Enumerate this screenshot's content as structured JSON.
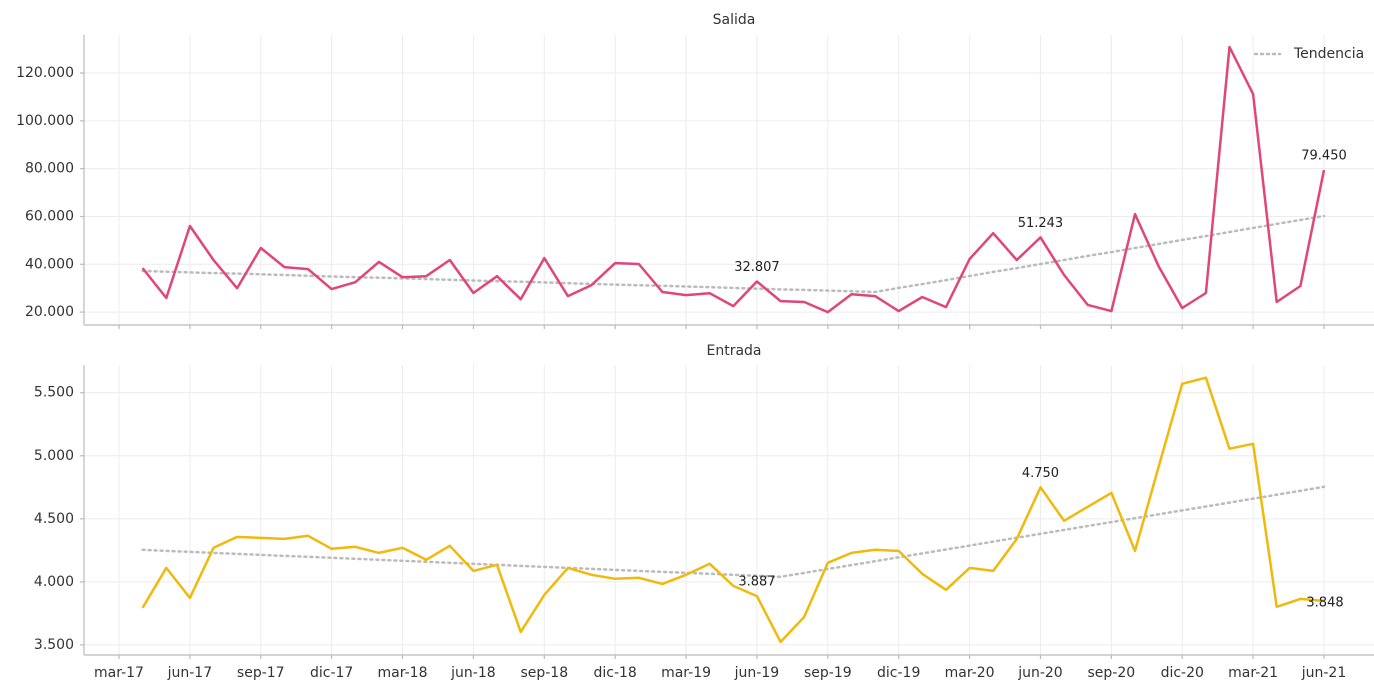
{
  "chart_data": [
    {
      "type": "line",
      "title": "Salida",
      "ylim": [
        14600,
        135900
      ],
      "yticks": [
        {
          "value": 20000,
          "label": "20.000"
        },
        {
          "value": 40000,
          "label": "40.000"
        },
        {
          "value": 60000,
          "label": "60.000"
        },
        {
          "value": 80000,
          "label": "80.000"
        },
        {
          "value": 100000,
          "label": "100.000"
        },
        {
          "value": 120000,
          "label": "120.000"
        }
      ],
      "grid": true,
      "legend": "upper right",
      "series": [
        {
          "color": "#e0457b",
          "values": [
            null,
            38400,
            25900,
            56000,
            41800,
            30000,
            46800,
            38800,
            38000,
            29600,
            32500,
            41000,
            34600,
            35000,
            41800,
            28000,
            35000,
            25400,
            42600,
            26700,
            31300,
            40500,
            40100,
            28400,
            27100,
            27900,
            22500,
            32807,
            24600,
            24200,
            20000,
            27500,
            26700,
            20400,
            26300,
            22100,
            42200,
            53000,
            41800,
            51243,
            35500,
            23000,
            20400,
            61000,
            39200,
            21700,
            28000,
            130900,
            111200,
            24200,
            30900,
            79450
          ],
          "value_labels": [
            null,
            null,
            null,
            null,
            null,
            null,
            null,
            null,
            null,
            null,
            null,
            null,
            null,
            null,
            null,
            null,
            null,
            null,
            null,
            null,
            null,
            null,
            null,
            null,
            null,
            null,
            null,
            "32.807",
            null,
            null,
            null,
            null,
            null,
            null,
            null,
            null,
            null,
            null,
            null,
            "51.243",
            null,
            null,
            null,
            null,
            null,
            null,
            null,
            null,
            null,
            null,
            null,
            "79.450"
          ]
        },
        {
          "name": "Tendencia",
          "color": "#bbbbbb",
          "dashed": true,
          "values": [
            null,
            37200,
            36900,
            36600,
            36300,
            36100,
            35800,
            35500,
            35200,
            34900,
            34600,
            34400,
            34100,
            33800,
            33500,
            33200,
            32900,
            32700,
            32400,
            32100,
            31800,
            31500,
            31200,
            31000,
            30700,
            30400,
            30100,
            29800,
            29500,
            29300,
            29000,
            28700,
            28400,
            30100,
            31700,
            33400,
            35100,
            36800,
            38400,
            40100,
            41800,
            43500,
            45100,
            46800,
            48500,
            50200,
            51800,
            53500,
            55200,
            56900,
            58500,
            60200
          ]
        }
      ]
    },
    {
      "type": "line",
      "title": "Entrada",
      "ylim": [
        3420,
        5720
      ],
      "yticks": [
        {
          "value": 3500,
          "label": "3.500"
        },
        {
          "value": 4000,
          "label": "4.000"
        },
        {
          "value": 4500,
          "label": "4.500"
        },
        {
          "value": 5000,
          "label": "5.000"
        },
        {
          "value": 5500,
          "label": "5.500"
        }
      ],
      "grid": true,
      "categories": [
        "mar-17",
        null,
        null,
        "jun-17",
        null,
        null,
        "sep-17",
        null,
        null,
        "dic-17",
        null,
        null,
        "mar-18",
        null,
        null,
        "jun-18",
        null,
        null,
        "sep-18",
        null,
        null,
        "dic-18",
        null,
        null,
        "mar-19",
        null,
        null,
        "jun-19",
        null,
        null,
        "sep-19",
        null,
        null,
        "dic-19",
        null,
        null,
        "mar-20",
        null,
        null,
        "jun-20",
        null,
        null,
        "sep-20",
        null,
        null,
        "dic-20",
        null,
        null,
        "mar-21",
        null,
        null,
        "jun-21"
      ],
      "series": [
        {
          "color": "#f0b90b",
          "values": [
            null,
            3794,
            4111,
            3873,
            4270,
            4357,
            4349,
            4341,
            4365,
            4262,
            4278,
            4230,
            4270,
            4175,
            4286,
            4087,
            4135,
            3603,
            3897,
            4111,
            4056,
            4024,
            4032,
            3984,
            4056,
            4143,
            3968,
            3887,
            3524,
            3722,
            4151,
            4230,
            4254,
            4246,
            4063,
            3937,
            4111,
            4087,
            4341,
            4750,
            4484,
            4595,
            4706,
            4246,
            4913,
            5571,
            5619,
            5056,
            5095,
            3802,
            3865,
            3848
          ],
          "value_labels": [
            null,
            null,
            null,
            null,
            null,
            null,
            null,
            null,
            null,
            null,
            null,
            null,
            null,
            null,
            null,
            null,
            null,
            null,
            null,
            null,
            null,
            null,
            null,
            null,
            null,
            null,
            null,
            "3.887",
            null,
            null,
            null,
            null,
            null,
            null,
            null,
            null,
            null,
            null,
            null,
            "4.750",
            null,
            null,
            null,
            null,
            null,
            null,
            null,
            null,
            null,
            null,
            null,
            "3.848"
          ]
        },
        {
          "color": "#bbbbbb",
          "dashed": true,
          "values": [
            null,
            4254,
            4246,
            4238,
            4230,
            4222,
            4214,
            4206,
            4199,
            4191,
            4183,
            4175,
            4167,
            4159,
            4151,
            4143,
            4135,
            4127,
            4119,
            4111,
            4103,
            4095,
            4087,
            4079,
            4072,
            4064,
            4056,
            4048,
            4040,
            4071,
            4102,
            4133,
            4164,
            4195,
            4226,
            4257,
            4288,
            4319,
            4350,
            4381,
            4412,
            4443,
            4474,
            4505,
            4536,
            4567,
            4598,
            4629,
            4660,
            4691,
            4722,
            4754
          ]
        }
      ]
    }
  ]
}
